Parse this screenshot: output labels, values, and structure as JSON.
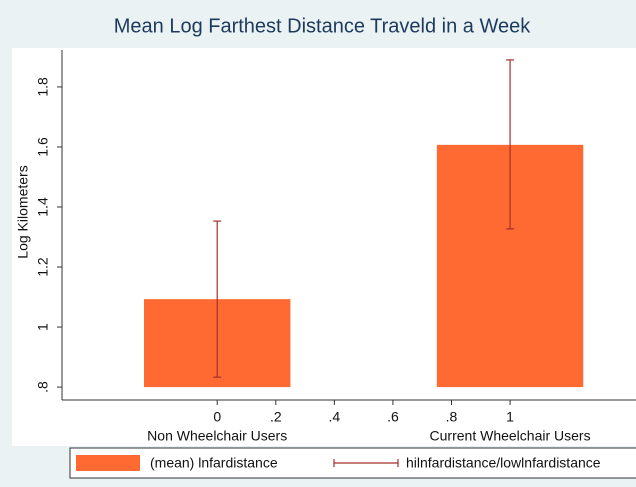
{
  "chart_data": {
    "type": "bar",
    "title": "Mean Log Farthest Distance Traveld in a Week",
    "y_label": "Log Kilometers",
    "categories": [
      "Non Wheelchair Users",
      "Current Wheelchair Users"
    ],
    "x": [
      0,
      1
    ],
    "bar_width": 0.5,
    "base": 0.8,
    "series": [
      {
        "name": "(mean) lnfardistance",
        "color": "#ff6a33",
        "values": [
          1.093,
          1.607
        ]
      },
      {
        "name": "hilnfardistance/lowlnfardistance",
        "color": "#a3302a",
        "high": [
          1.353,
          1.89
        ],
        "low": [
          0.833,
          1.327
        ]
      }
    ],
    "xlim": [
      -0.53,
      1.43
    ],
    "xticks": [
      0,
      {
        "value": 0.2,
        "label": ".2"
      },
      {
        "value": 0.4,
        "label": ".4"
      },
      {
        "value": 0.6,
        "label": ".6"
      },
      {
        "value": 0.8,
        "label": ".8"
      },
      1
    ],
    "ylim": [
      0.757,
      1.923
    ],
    "yticks": [
      {
        "value": 0.8,
        "label": ".8"
      },
      1,
      1.2,
      1.4,
      1.6,
      1.8
    ]
  }
}
